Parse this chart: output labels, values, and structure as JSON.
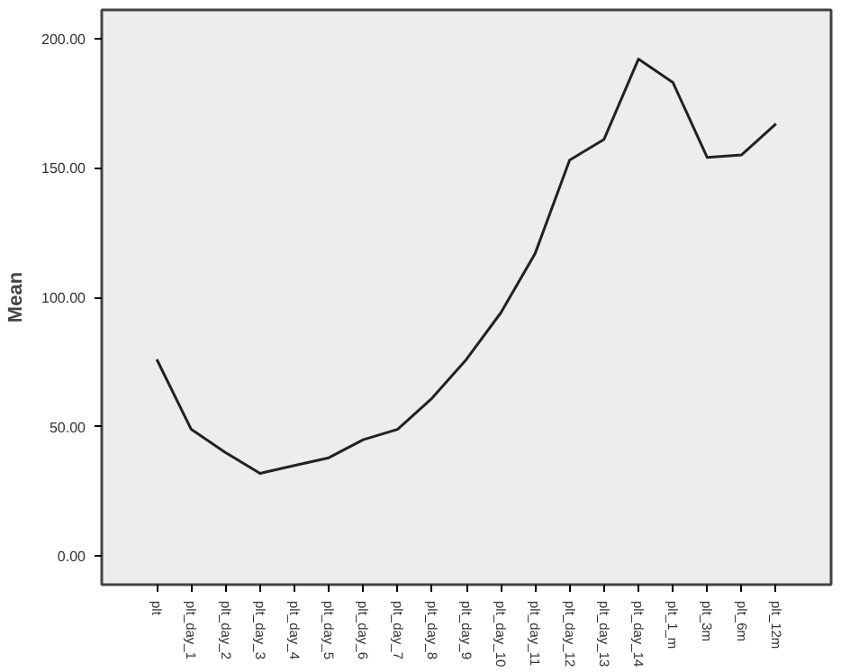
{
  "chart_data": {
    "type": "line",
    "ylabel": "Mean",
    "categories": [
      "plt",
      "plt_day_1",
      "plt_day_2",
      "plt_day_3",
      "plt_day_4",
      "plt_day_5",
      "plt_day_6",
      "plt_day_7",
      "plt_day_8",
      "plt_day_9",
      "plt_day_10",
      "plt_day_11",
      "plt_day_12",
      "plt_day_13",
      "plt_day_14",
      "plt_1_m",
      "plt_3m",
      "plt_6m",
      "plt_12m"
    ],
    "series": [
      {
        "color": "#222222",
        "values": [
          76,
          49,
          40,
          32,
          35,
          38,
          45,
          49,
          61,
          76,
          94,
          117,
          153,
          161,
          192,
          183,
          154,
          155,
          167
        ]
      }
    ],
    "ylim": [
      -11,
      211
    ],
    "yticks": [
      {
        "value": 0,
        "label": "0.00"
      },
      {
        "value": 50,
        "label": "50.00"
      },
      {
        "value": 100,
        "label": "100.00"
      },
      {
        "value": 150,
        "label": "150.00"
      },
      {
        "value": 200,
        "label": "200.00"
      }
    ],
    "grid": false,
    "marker": "none",
    "line_style": "solid"
  }
}
